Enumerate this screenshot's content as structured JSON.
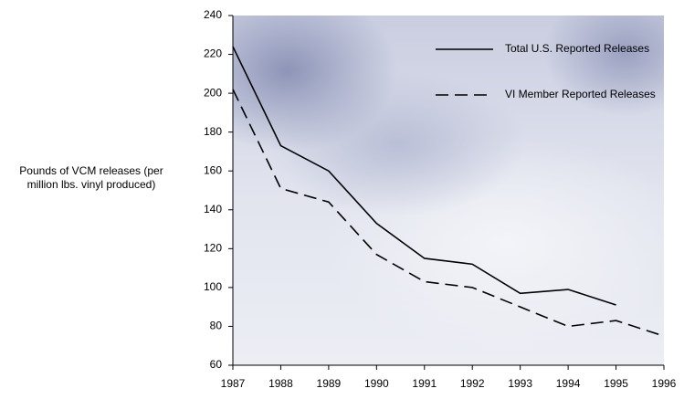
{
  "chart_data": {
    "type": "line",
    "y_label": "Pounds of VCM releases (per million lbs. vinyl produced)",
    "x": [
      1987,
      1988,
      1989,
      1990,
      1991,
      1992,
      1993,
      1994,
      1995,
      1996
    ],
    "xlim": [
      1987,
      1996
    ],
    "xticks": [
      1987,
      1988,
      1989,
      1990,
      1991,
      1992,
      1993,
      1994,
      1995,
      1996
    ],
    "ylim": [
      60,
      240
    ],
    "yticks": [
      60,
      80,
      100,
      120,
      140,
      160,
      180,
      200,
      220,
      240
    ],
    "legend": "upper right",
    "series": [
      {
        "name": "Total U.S. Reported Releases",
        "color": "#000000",
        "dash": false,
        "values": [
          224,
          173,
          160,
          133,
          115,
          112,
          97,
          99,
          91,
          null
        ]
      },
      {
        "name": "VI Member Reported Releases",
        "color": "#000000",
        "dash": true,
        "values": [
          202,
          151,
          144,
          117,
          103,
          100,
          90,
          80,
          83,
          75
        ]
      }
    ]
  }
}
